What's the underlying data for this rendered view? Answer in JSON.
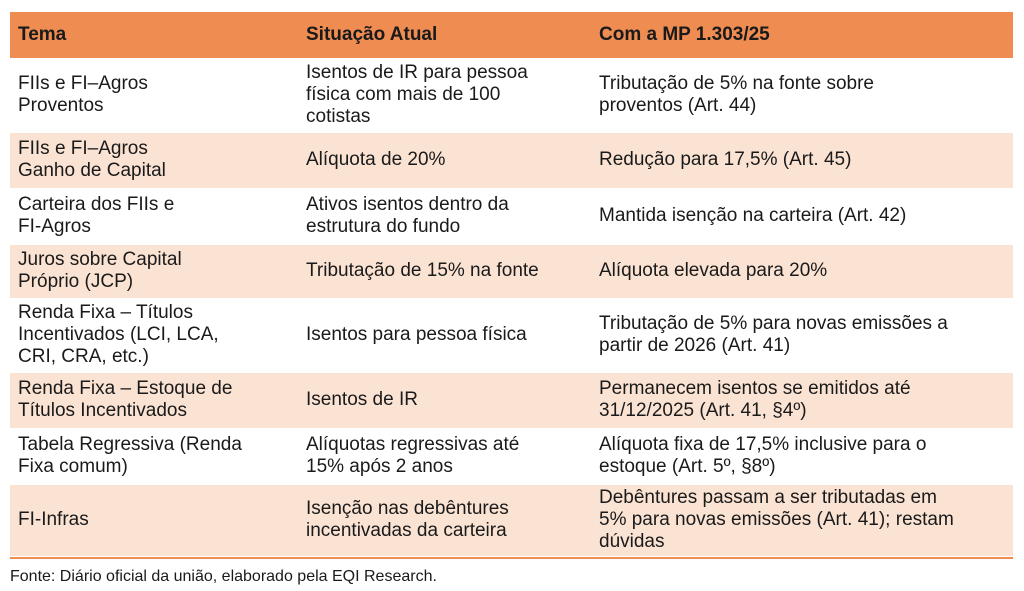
{
  "table": {
    "headers": [
      "Tema",
      "Situação Atual",
      "Com a MP 1.303/25"
    ],
    "rows": [
      [
        "FIIs e FI–Agros\nProventos",
        "Isentos de IR para pessoa\nfísica com mais de 100\ncotistas",
        "Tributação de 5% na fonte sobre\nproventos (Art. 44)"
      ],
      [
        "FIIs e FI–Agros\nGanho de Capital",
        "Alíquota de 20%",
        "Redução para 17,5% (Art. 45)"
      ],
      [
        "Carteira dos FIIs e\nFI-Agros",
        "Ativos isentos dentro da\nestrutura do fundo",
        "Mantida isenção na carteira (Art. 42)"
      ],
      [
        "Juros sobre Capital\nPróprio (JCP)",
        "Tributação de 15% na fonte",
        "Alíquota elevada para 20%"
      ],
      [
        "Renda Fixa – Títulos\nIncentivados (LCI, LCA,\nCRI, CRA, etc.)",
        "Isentos para pessoa física",
        "Tributação de 5% para novas emissões a\npartir de 2026 (Art. 41)"
      ],
      [
        "Renda Fixa – Estoque de\nTítulos Incentivados",
        "Isentos de IR",
        "Permanecem isentos se emitidos até\n31/12/2025 (Art. 41, §4º)"
      ],
      [
        "Tabela Regressiva (Renda\nFixa comum)",
        "Alíquotas regressivas até\n15% após 2 anos",
        "Alíquota fixa de 17,5% inclusive para o\nestoque (Art. 5º, §8º)"
      ],
      [
        "FI-Infras",
        "Isenção nas debêntures\nincentivadas da carteira",
        "Debêntures passam a ser tributadas em\n5% para novas emissões (Art. 41); restam\ndúvidas"
      ]
    ]
  },
  "source": "Fonte: Diário oficial da união, elaborado pela EQI Research.",
  "colors": {
    "header_bg": "#ef8c52",
    "band_bg": "#fbe3d4"
  }
}
